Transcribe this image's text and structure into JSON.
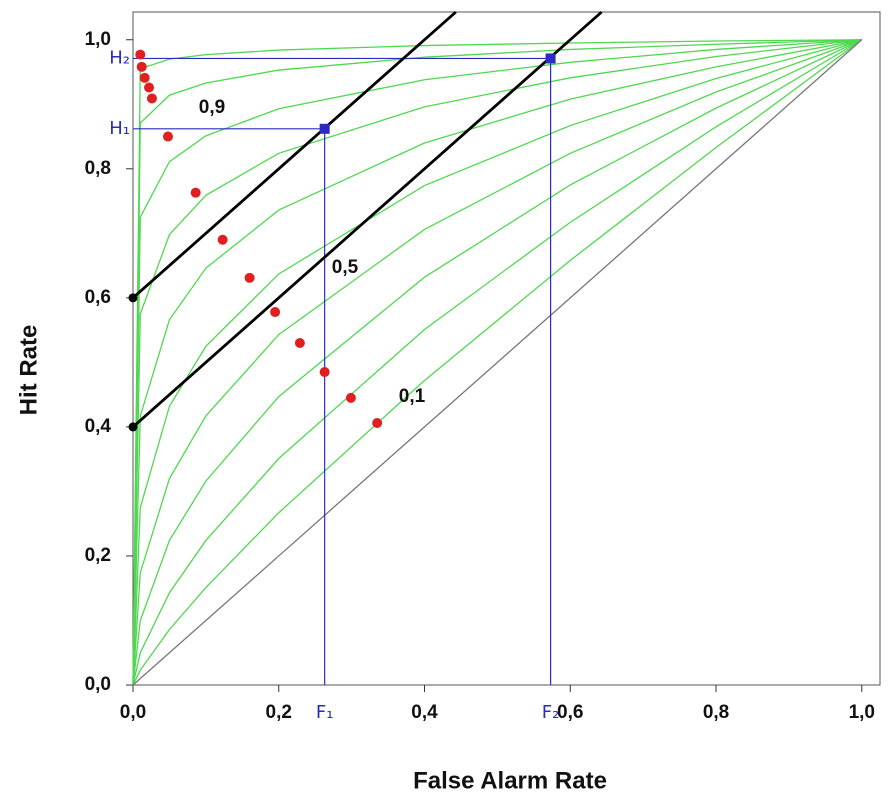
{
  "chart_data": {
    "type": "line",
    "x_label": "False Alarm Rate",
    "y_label": "Hit Rate",
    "xlim": [
      0,
      1.025
    ],
    "ylim": [
      0,
      1.043
    ],
    "xticks": [
      {
        "value": 0,
        "label": "0,0"
      },
      {
        "value": 0.2,
        "label": "0,2"
      },
      {
        "value": 0.4,
        "label": "0,4"
      },
      {
        "value": 0.6,
        "label": "0,6"
      },
      {
        "value": 0.8,
        "label": "0,8"
      },
      {
        "value": 1,
        "label": "1,0"
      }
    ],
    "yticks": [
      {
        "value": 0,
        "label": "0,0"
      },
      {
        "value": 0.2,
        "label": "0,2"
      },
      {
        "value": 0.4,
        "label": "0,4"
      },
      {
        "value": 0.6,
        "label": "0,6"
      },
      {
        "value": 0.8,
        "label": "0,8"
      },
      {
        "value": 1,
        "label": "1,0"
      }
    ],
    "x": [
      0,
      0.01,
      0.05,
      0.1,
      0.2,
      0.4,
      0.6,
      0.8,
      1
    ],
    "series": [
      {
        "color": "#4fd84f",
        "values": [
          0,
          0.955,
          0.97,
          0.977,
          0.984,
          0.991,
          0.995,
          0.998,
          1
        ]
      },
      {
        "color": "#4fd84f",
        "values": [
          0,
          0.871,
          0.914,
          0.933,
          0.953,
          0.973,
          0.985,
          0.993,
          1
        ]
      },
      {
        "color": "#4fd84f",
        "values": [
          0,
          0.725,
          0.811,
          0.851,
          0.893,
          0.938,
          0.965,
          0.985,
          1
        ]
      },
      {
        "color": "#4fd84f",
        "values": [
          0,
          0.575,
          0.698,
          0.759,
          0.824,
          0.896,
          0.941,
          0.974,
          1
        ]
      },
      {
        "color": "#4fd84f",
        "values": [
          0,
          0.417,
          0.566,
          0.646,
          0.736,
          0.84,
          0.908,
          0.958,
          1
        ]
      },
      {
        "color": "#4fd84f",
        "values": [
          0,
          0.275,
          0.432,
          0.525,
          0.637,
          0.774,
          0.867,
          0.94,
          1
        ]
      },
      {
        "color": "#4fd84f",
        "values": [
          0,
          0.174,
          0.32,
          0.417,
          0.543,
          0.706,
          0.824,
          0.919,
          1
        ]
      },
      {
        "color": "#4fd84f",
        "values": [
          0,
          0.1,
          0.224,
          0.316,
          0.447,
          0.632,
          0.775,
          0.894,
          1
        ]
      },
      {
        "color": "#4fd84f",
        "values": [
          0,
          0.05,
          0.143,
          0.224,
          0.351,
          0.551,
          0.717,
          0.865,
          1
        ]
      },
      {
        "color": "#4fd84f",
        "values": [
          0,
          0.023,
          0.086,
          0.151,
          0.267,
          0.472,
          0.658,
          0.833,
          1
        ]
      },
      {
        "color": "#777777",
        "values": [
          0,
          0.01,
          0.05,
          0.1,
          0.2,
          0.4,
          0.6,
          0.8,
          1
        ]
      }
    ],
    "lines": [
      {
        "color": "#000000",
        "x": [
          0,
          0.443
        ],
        "values": [
          0.6,
          1.043
        ]
      },
      {
        "color": "#000000",
        "x": [
          0,
          0.643
        ],
        "values": [
          0.4,
          1.043
        ]
      }
    ],
    "intercepts": {
      "color": "#000000",
      "x": [
        0,
        0
      ],
      "values": [
        0.6,
        0.4
      ]
    },
    "points": {
      "color": "#e02020",
      "x": [
        0.01,
        0.012,
        0.016,
        0.022,
        0.026,
        0.048,
        0.086,
        0.123,
        0.16,
        0.195,
        0.229,
        0.263,
        0.299,
        0.335
      ],
      "values": [
        0.977,
        0.958,
        0.941,
        0.926,
        0.909,
        0.85,
        0.763,
        0.69,
        0.631,
        0.578,
        0.53,
        0.485,
        0.445,
        0.406
      ]
    },
    "criteria": {
      "color": "#2b2bbd",
      "points": [
        {
          "x": 0.263,
          "y": 0.862,
          "x_label": "F₁",
          "y_label": "H₁"
        },
        {
          "x": 0.573,
          "y": 0.971,
          "x_label": "F₂",
          "y_label": "H₂"
        }
      ]
    },
    "annotations": [
      "0,9",
      "0,5",
      "0,1"
    ]
  }
}
